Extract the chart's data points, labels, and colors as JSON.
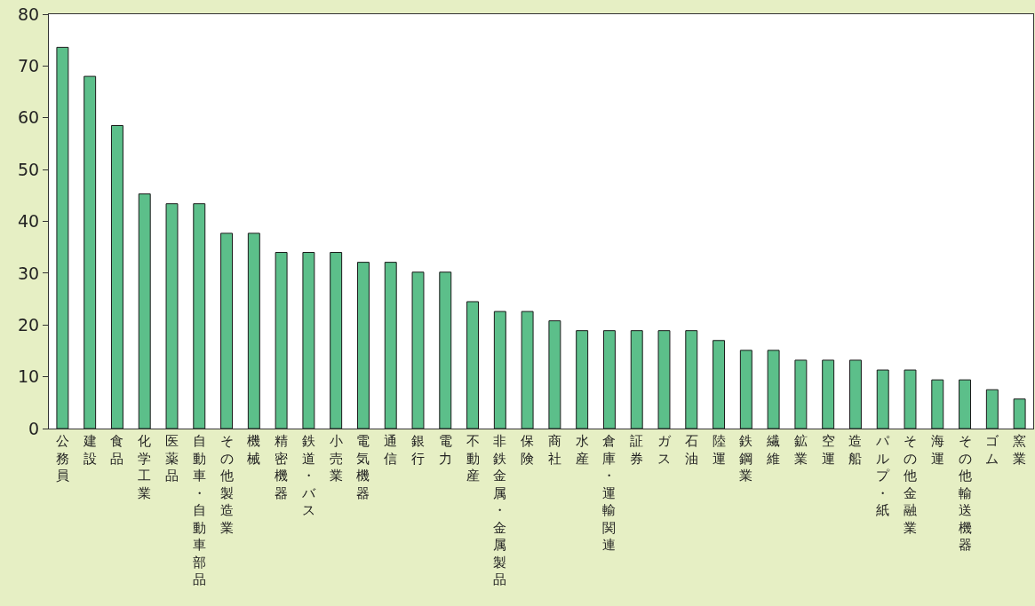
{
  "chart_data": {
    "type": "bar",
    "categories": [
      "公務員",
      "建設",
      "食品",
      "化学工業",
      "医薬品",
      "自動車・自動車部品",
      "その他製造業",
      "機械",
      "精密機器",
      "鉄道・バス",
      "小売業",
      "電気機器",
      "通信",
      "銀行",
      "電力",
      "不動産",
      "非鉄金属・金属製品",
      "保険",
      "商社",
      "水産",
      "倉庫・運輸関連",
      "証券",
      "ガス",
      "石油",
      "陸運",
      "鉄鋼業",
      "繊維",
      "鉱業",
      "空運",
      "造船",
      "パルプ・紙",
      "その他金融業",
      "海運",
      "その他輸送機器",
      "ゴム",
      "窯業"
    ],
    "values": [
      73.6,
      68,
      58.5,
      45.3,
      43.4,
      43.4,
      37.7,
      37.7,
      34,
      34,
      34,
      32.1,
      32.1,
      30.2,
      30.2,
      24.5,
      22.6,
      22.6,
      20.8,
      18.9,
      18.9,
      18.9,
      18.9,
      18.9,
      17,
      15.1,
      15.1,
      13.2,
      13.2,
      13.2,
      11.3,
      11.3,
      9.4,
      9.4,
      7.5,
      5.7
    ],
    "color": "#5cbf8a",
    "ylim": [
      0,
      80
    ],
    "yticks": [
      0,
      10,
      20,
      30,
      40,
      50,
      60,
      70,
      80
    ]
  }
}
